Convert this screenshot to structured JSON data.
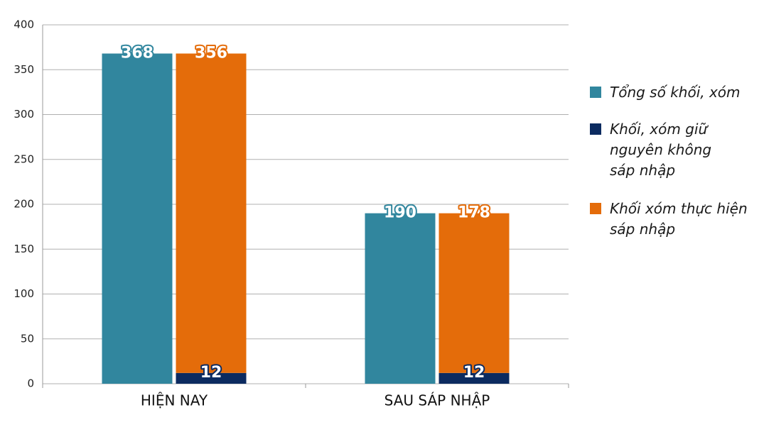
{
  "chart_data": {
    "type": "bar",
    "categories": [
      "HIỆN NAY",
      "SAU SÁP NHẬP"
    ],
    "series": [
      {
        "name": "Tổng số khối, xóm",
        "color": "#31869e",
        "values": [
          368,
          190
        ],
        "stack": "total"
      },
      {
        "name": "Khối, xóm giữ nguyên không sáp nhập",
        "color": "#0c2b60",
        "values": [
          12,
          12
        ],
        "stack": "parts"
      },
      {
        "name": "Khối xóm thực hiện sáp nhập",
        "color": "#e46c0a",
        "values": [
          356,
          178
        ],
        "stack": "parts"
      }
    ],
    "ylim": [
      0,
      400
    ],
    "yticks": [
      0,
      50,
      100,
      150,
      200,
      250,
      300,
      350,
      400
    ],
    "grid": true,
    "legend": "right"
  }
}
